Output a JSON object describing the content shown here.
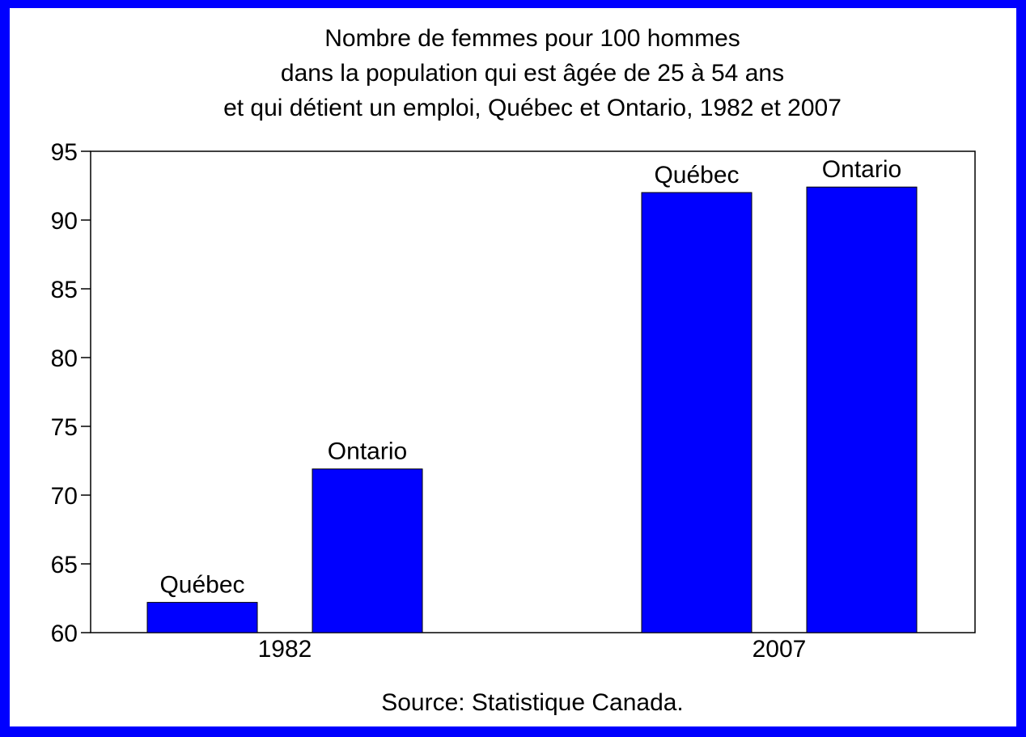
{
  "chart_data": {
    "type": "bar",
    "title": [
      "Nombre de femmes pour 100 hommes",
      "dans la population qui est âgée de 25 à 54 ans",
      "et qui détient un emploi, Québec et Ontario, 1982 et 2007"
    ],
    "categories": [
      "1982",
      "2007"
    ],
    "series": [
      {
        "name": "Québec",
        "color": "#0000ff",
        "values": [
          62.2,
          92.0
        ]
      },
      {
        "name": "Ontario",
        "color": "#0000ff",
        "values": [
          71.9,
          92.4
        ]
      }
    ],
    "ylim": [
      60,
      95
    ],
    "yticks": [
      60,
      65,
      70,
      75,
      80,
      85,
      90,
      95
    ],
    "grid": false,
    "source": "Source: Statistique Canada."
  }
}
